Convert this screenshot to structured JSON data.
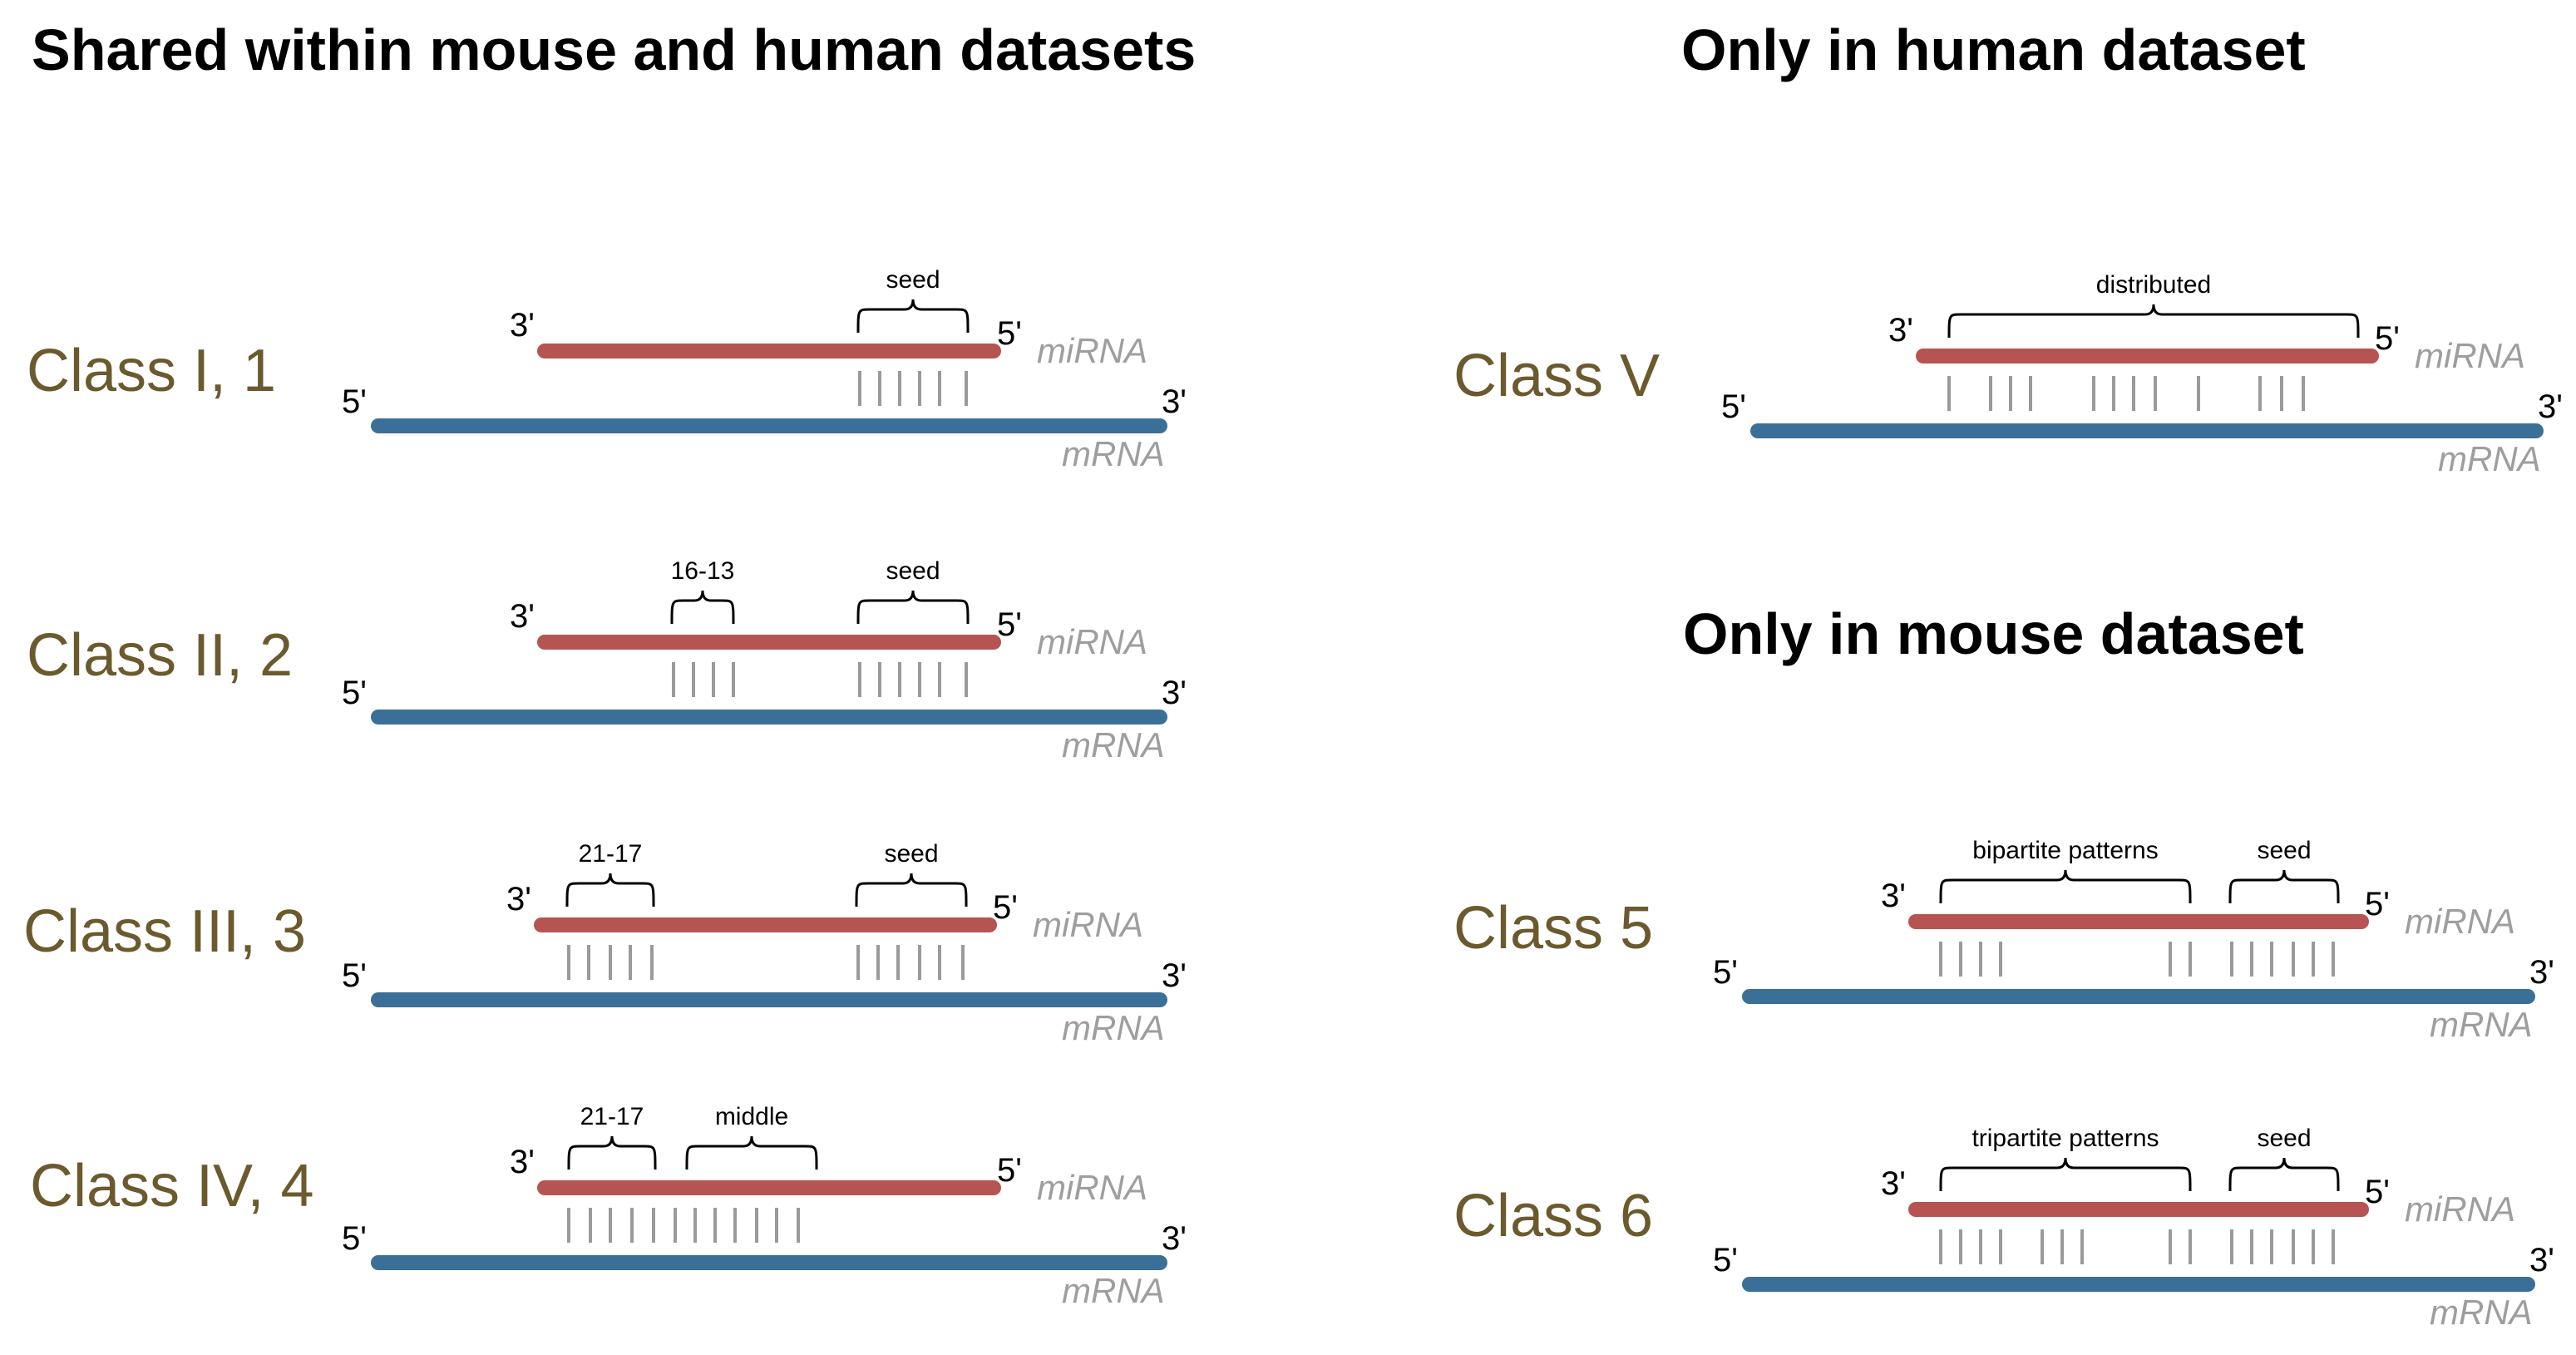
{
  "headings": {
    "shared": "Shared within mouse and human datasets",
    "human": "Only in human dataset",
    "mouse": "Only in mouse dataset"
  },
  "colors": {
    "mirna_strand": "#b55451",
    "mrna_strand": "#3a6f98",
    "pairing_line": "#9a9a9a",
    "class_label": "#6b5a2e",
    "strand_label": "#9e9e9e"
  },
  "labels": {
    "mirna": "miRNA",
    "mrna": "mRNA",
    "three_prime": "3'",
    "five_prime": "5'"
  },
  "classes": [
    {
      "name": "Class I, 1",
      "regions": [
        {
          "label": "seed",
          "pairs": 6
        }
      ]
    },
    {
      "name": "Class II, 2",
      "regions": [
        {
          "label": "16-13",
          "pairs": 4
        },
        {
          "label": "seed",
          "pairs": 6
        }
      ]
    },
    {
      "name": "Class III, 3",
      "regions": [
        {
          "label": "21-17",
          "pairs": 5
        },
        {
          "label": "seed",
          "pairs": 6
        }
      ]
    },
    {
      "name": "Class IV, 4",
      "regions": [
        {
          "label": "21-17",
          "pairs": 5
        },
        {
          "label": "middle",
          "pairs": 7
        }
      ]
    },
    {
      "name": "Class V",
      "regions": [
        {
          "label": "distributed",
          "pairs": 12
        }
      ]
    },
    {
      "name": "Class 5",
      "regions": [
        {
          "label": "bipartite patterns",
          "pairs": 6
        },
        {
          "label": "seed",
          "pairs": 6
        }
      ]
    },
    {
      "name": "Class 6",
      "regions": [
        {
          "label": "tripartite patterns",
          "pairs": 9
        },
        {
          "label": "seed",
          "pairs": 6
        }
      ]
    }
  ]
}
